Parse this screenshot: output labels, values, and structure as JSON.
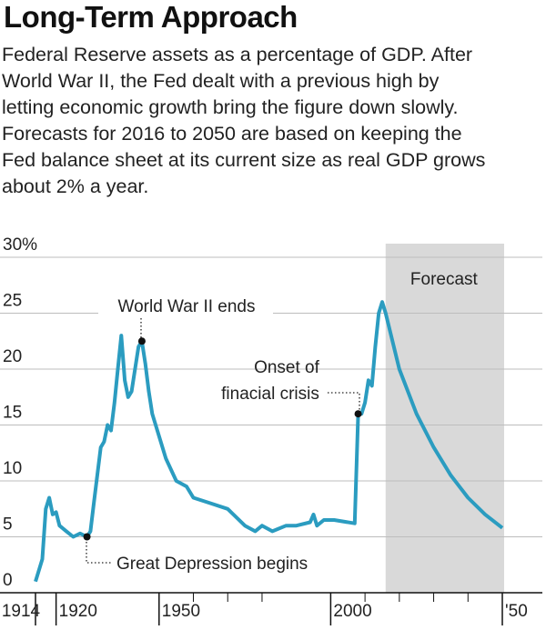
{
  "chart_data": {
    "type": "line",
    "title": "Long-Term Approach",
    "subtitle": [
      "Federal Reserve assets as a percentage of GDP. After",
      "World War II, the Fed dealt with a previous high by",
      "letting economic growth bring the figure down slowly.",
      "Forecasts for 2016 to 2050 are based on keeping the",
      "Fed balance sheet at its current size as real GDP grows",
      "about 2% a year."
    ],
    "x": [
      1914,
      1916,
      1917,
      1918,
      1919,
      1920,
      1921,
      1923,
      1925,
      1927,
      1929,
      1930,
      1931,
      1932,
      1933,
      1934,
      1935,
      1936,
      1937,
      1938,
      1939,
      1940,
      1941,
      1942,
      1944,
      1945,
      1946,
      1947,
      1948,
      1950,
      1952,
      1955,
      1958,
      1960,
      1965,
      1970,
      1975,
      1978,
      1980,
      1983,
      1987,
      1990,
      1994,
      1995,
      1996,
      1998,
      2001,
      2007,
      2008,
      2009,
      2010,
      2011,
      2012,
      2013,
      2014,
      2015,
      2016,
      2020,
      2025,
      2030,
      2035,
      2040,
      2045,
      2050
    ],
    "values": [
      1,
      3,
      7.5,
      8.5,
      7,
      7.2,
      6,
      5.5,
      5,
      5.3,
      5,
      5.5,
      8,
      10.5,
      13,
      13.5,
      15,
      14.5,
      17,
      20,
      23,
      19,
      17.5,
      18,
      22,
      22.5,
      20.5,
      18,
      16,
      14,
      12,
      10,
      9.5,
      8.5,
      8,
      7.5,
      6,
      5.5,
      6,
      5.5,
      6,
      6,
      6.3,
      7,
      6,
      6.5,
      6.5,
      6.2,
      16,
      16,
      17,
      19,
      18.5,
      22,
      25,
      26,
      25,
      20,
      16,
      13,
      10.5,
      8.5,
      7,
      5.8
    ],
    "color": "#2b9cc0",
    "xlim": [
      1914,
      2050
    ],
    "ylim": [
      0,
      30
    ],
    "yticks": [
      0,
      5,
      10,
      15,
      20,
      25,
      {
        "value": 30,
        "label": "30%"
      }
    ],
    "xticks": [
      1914,
      1920,
      1950,
      2000,
      {
        "value": 2050,
        "label": "'50"
      }
    ],
    "minor_xticks": [
      1960,
      1970,
      1980,
      2010,
      2020,
      2030,
      2040
    ],
    "grid": true,
    "forecast": {
      "label": "Forecast",
      "start": 2016
    },
    "annotations": [
      {
        "text": [
          "World War II ends"
        ]
      },
      {
        "text": [
          "Onset of",
          "finacial crisis"
        ]
      },
      {
        "text": [
          "Great Depression begins"
        ]
      }
    ]
  }
}
